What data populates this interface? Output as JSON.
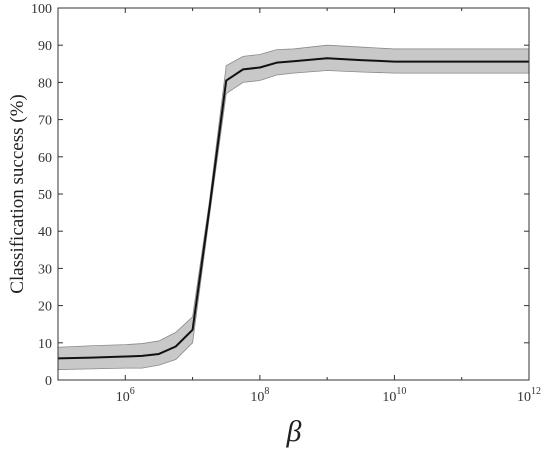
{
  "chart_data": {
    "type": "line",
    "xscale": "log",
    "xlim": [
      100000,
      1000000000000
    ],
    "ylim": [
      0,
      100
    ],
    "xlabel": "β",
    "ylabel": "Classification success (%)",
    "x_ticks": [
      {
        "value": 1000000,
        "base": "10",
        "exp": "6"
      },
      {
        "value": 100000000,
        "base": "10",
        "exp": "8"
      },
      {
        "value": 10000000000,
        "base": "10",
        "exp": "10"
      },
      {
        "value": 1000000000000,
        "base": "10",
        "exp": "12"
      }
    ],
    "y_ticks": [
      0,
      10,
      20,
      30,
      40,
      50,
      60,
      70,
      80,
      90,
      100
    ],
    "grid": false,
    "series": [
      {
        "x": [
          100000,
          316228,
          1000000,
          1778279,
          3162278,
          5623413,
          10000000,
          17782794,
          31622777,
          56234133,
          100000000,
          177827941,
          316227766,
          1000000000,
          3162277660,
          10000000000,
          31622776602,
          100000000000,
          1000000000000
        ],
        "y": [
          5.8,
          6.0,
          6.3,
          6.5,
          7.0,
          9.0,
          13.5,
          46.0,
          80.5,
          83.5,
          84.0,
          85.3,
          85.7,
          86.5,
          86.0,
          85.6,
          85.6,
          85.6,
          85.6
        ],
        "lower": [
          2.8,
          3.0,
          3.2,
          3.2,
          4.0,
          5.5,
          10.0,
          44.0,
          77.0,
          80.0,
          80.5,
          82.0,
          82.5,
          83.2,
          82.8,
          82.5,
          82.5,
          82.5,
          82.5
        ],
        "upper": [
          8.8,
          9.2,
          9.5,
          9.8,
          10.5,
          12.8,
          17.0,
          48.0,
          84.5,
          87.0,
          87.5,
          88.8,
          89.0,
          90.0,
          89.5,
          89.0,
          89.0,
          89.0,
          89.0
        ]
      }
    ],
    "colors": {
      "line": "#111111",
      "band": "#c8c8c8",
      "band_edge": "#8a8a8a",
      "axis": "#333333"
    }
  }
}
